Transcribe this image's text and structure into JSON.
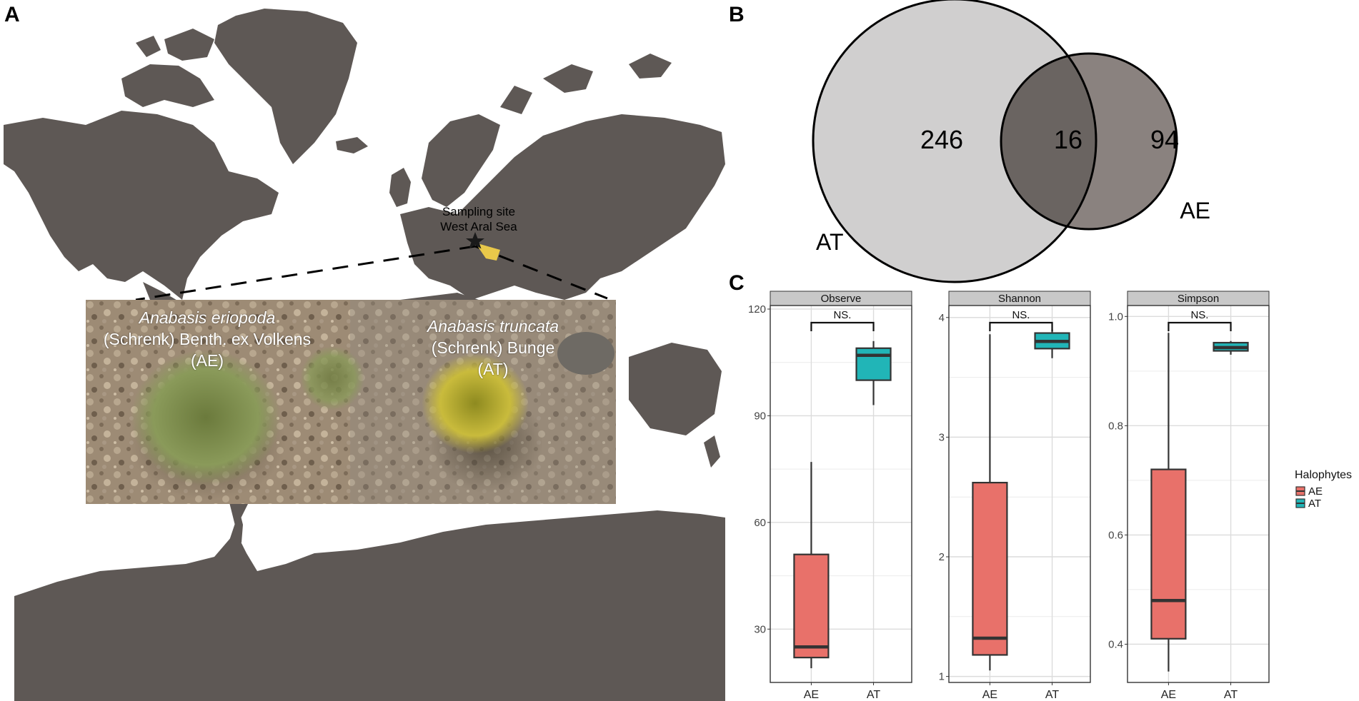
{
  "panels": {
    "a": "A",
    "b": "B",
    "c": "C"
  },
  "map": {
    "site_line1": "Sampling site",
    "site_line2": "West Aral Sea",
    "land_color": "#5e5855",
    "star_icon": "star-icon"
  },
  "photo": {
    "left_species": "Anabasis eriopoda",
    "left_authority": "(Schrenk) Benth. ex Volkens",
    "left_code": "(AE)",
    "right_species": "Anabasis truncata",
    "right_authority": "(Schrenk) Bunge",
    "right_code": "(AT)"
  },
  "venn": {
    "at_only": "246",
    "shared": "16",
    "ae_only": "94",
    "label_at": "AT",
    "label_ae": "AE",
    "color_at": "#d0cfcf",
    "color_ae": "#8a827f",
    "color_overlap": "#6a6461"
  },
  "chart_data": {
    "type": "boxplot",
    "legend": {
      "title": "Halophytes",
      "placement": "right",
      "entries": [
        {
          "name": "AE",
          "color": "#e8716a"
        },
        {
          "name": "AT",
          "color": "#21b5b7"
        }
      ]
    },
    "facets": [
      {
        "strip": "Observe",
        "ylim": [
          15,
          121
        ],
        "yticks": [
          30,
          60,
          90,
          120
        ],
        "ytick_labels": [
          "30",
          "60",
          "90",
          "120"
        ],
        "significance": "NS.",
        "categories": [
          "AE",
          "AT"
        ],
        "boxes": [
          {
            "group": "AE",
            "min": 19,
            "q1": 22,
            "median": 25,
            "q3": 51,
            "max": 77
          },
          {
            "group": "AT",
            "min": 93,
            "q1": 100,
            "median": 107,
            "q3": 109,
            "max": 111
          }
        ]
      },
      {
        "strip": "Shannon",
        "ylim": [
          0.95,
          4.1
        ],
        "yticks": [
          1,
          2,
          3,
          4
        ],
        "ytick_labels": [
          "1",
          "2",
          "3",
          "4"
        ],
        "significance": "NS.",
        "categories": [
          "AE",
          "AT"
        ],
        "boxes": [
          {
            "group": "AE",
            "min": 1.05,
            "q1": 1.18,
            "median": 1.32,
            "q3": 2.62,
            "max": 3.86
          },
          {
            "group": "AT",
            "min": 3.66,
            "q1": 3.74,
            "median": 3.8,
            "q3": 3.87,
            "max": 3.9
          }
        ]
      },
      {
        "strip": "Simpson",
        "ylim": [
          0.33,
          1.02
        ],
        "yticks": [
          0.4,
          0.6,
          0.8,
          1.0
        ],
        "ytick_labels": [
          "0.4",
          "0.6",
          "0.8",
          "1.0"
        ],
        "significance": "NS.",
        "categories": [
          "AE",
          "AT"
        ],
        "boxes": [
          {
            "group": "AE",
            "min": 0.35,
            "q1": 0.41,
            "median": 0.48,
            "q3": 0.72,
            "max": 0.97
          },
          {
            "group": "AT",
            "min": 0.93,
            "q1": 0.937,
            "median": 0.943,
            "q3": 0.952,
            "max": 0.955
          }
        ]
      }
    ]
  }
}
